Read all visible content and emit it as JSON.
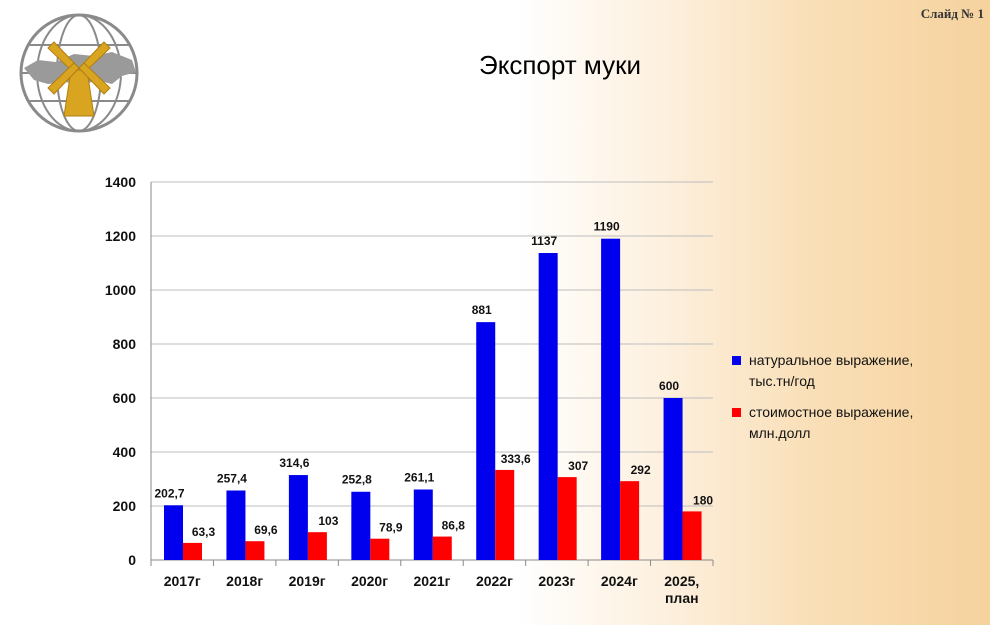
{
  "slide_number": "Слайд № 1",
  "colors": {
    "natural": "#0000ee",
    "value": "#ff0000",
    "grid": "#bdbdbd",
    "axis": "#8a8a8a"
  },
  "chart_data": {
    "type": "bar",
    "title": "Экспорт муки",
    "categories": [
      [
        "2017г"
      ],
      [
        "2018г"
      ],
      [
        "2019г"
      ],
      [
        "2020г"
      ],
      [
        "2021г"
      ],
      [
        "2022г"
      ],
      [
        "2023г"
      ],
      [
        "2024г"
      ],
      [
        "2025,",
        "план"
      ]
    ],
    "series": [
      {
        "name": "натуральное выражение, тыс.тн/год",
        "name_lines": [
          "натуральное выражение,",
          "тыс.тн/год"
        ],
        "values": [
          202.7,
          257.4,
          314.6,
          252.8,
          261.1,
          881,
          1137,
          1190,
          600
        ],
        "labels": [
          "202,7",
          "257,4",
          "314,6",
          "252,8",
          "261,1",
          "881",
          "1137",
          "1190",
          "600"
        ]
      },
      {
        "name": "стоимостное выражение, млн.долл",
        "name_lines": [
          "стоимостное выражение,",
          "млн.долл"
        ],
        "values": [
          63.3,
          69.6,
          103,
          78.9,
          86.8,
          333.6,
          307,
          292,
          180
        ],
        "labels": [
          "63,3",
          "69,6",
          "103",
          "78,9",
          "86,8",
          "333,6",
          "307",
          "292",
          "180"
        ]
      }
    ],
    "ylim": [
      0,
      1400
    ],
    "yticks": [
      0,
      200,
      400,
      600,
      800,
      1000,
      1200,
      1400
    ],
    "grid": true,
    "legend": "right"
  }
}
